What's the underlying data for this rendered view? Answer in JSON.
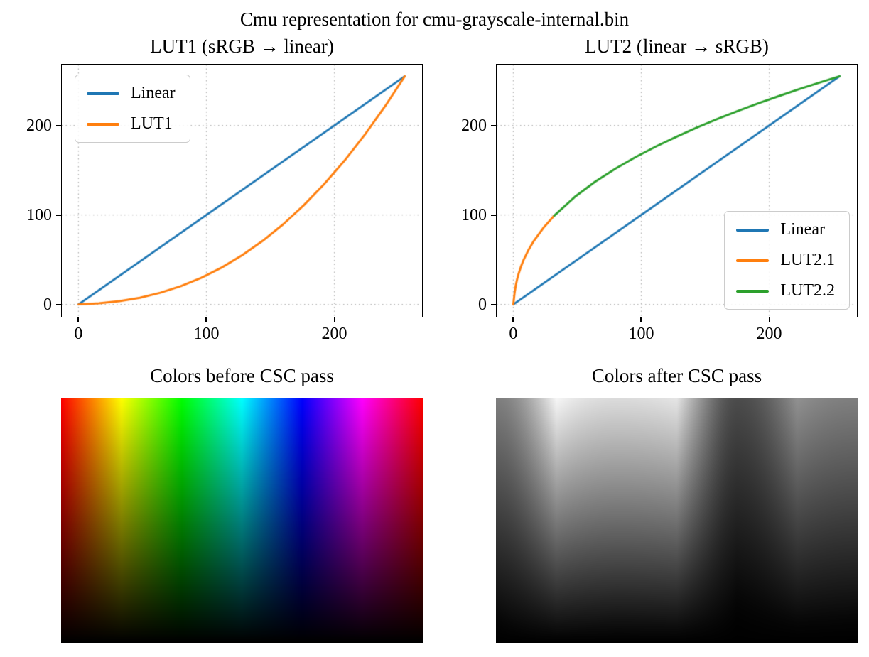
{
  "figure": {
    "suptitle": "Cmu representation for cmu-grayscale-internal.bin",
    "background_color": "#ffffff",
    "grid_color": "#b0b0b0",
    "spine_color": "#000000"
  },
  "chart_data": [
    {
      "type": "line",
      "title": "LUT1 (sRGB → linear)",
      "xlabel": "",
      "ylabel": "",
      "xlim": [
        -13,
        268
      ],
      "ylim": [
        -13,
        268
      ],
      "xticks": [
        0,
        100,
        200
      ],
      "yticks": [
        0,
        100,
        200
      ],
      "grid": true,
      "grid_style": "dotted",
      "legend_position": "upper-left",
      "series": [
        {
          "name": "Linear",
          "color": "#1f77b4",
          "x": [
            0,
            255
          ],
          "y": [
            0,
            255
          ]
        },
        {
          "name": "LUT1",
          "color": "#ff7f0e",
          "x": [
            0,
            16,
            32,
            48,
            64,
            80,
            96,
            112,
            128,
            144,
            160,
            176,
            192,
            208,
            224,
            240,
            255
          ],
          "y": [
            0,
            1.3,
            3.7,
            7.5,
            13.1,
            20.4,
            29.8,
            41.3,
            55.0,
            71.1,
            89.6,
            110.7,
            134.4,
            160.8,
            190.1,
            222.2,
            255
          ]
        }
      ]
    },
    {
      "type": "line",
      "title": "LUT2 (linear → sRGB)",
      "xlabel": "",
      "ylabel": "",
      "xlim": [
        -13,
        268
      ],
      "ylim": [
        -13,
        268
      ],
      "xticks": [
        0,
        100,
        200
      ],
      "yticks": [
        0,
        100,
        200
      ],
      "grid": true,
      "grid_style": "dotted",
      "legend_position": "lower-right",
      "series": [
        {
          "name": "Linear",
          "color": "#1f77b4",
          "x": [
            0,
            255
          ],
          "y": [
            0,
            255
          ]
        },
        {
          "name": "LUT2.1",
          "color": "#ff7f0e",
          "x": [
            0,
            1,
            2,
            3,
            4,
            6,
            8,
            12,
            16,
            24,
            32
          ],
          "y": [
            0,
            12.7,
            21.7,
            28.2,
            33.6,
            42.4,
            49.6,
            61.3,
            70.9,
            86.5,
            99.3
          ]
        },
        {
          "name": "LUT2.2",
          "color": "#2ca02c",
          "x": [
            32,
            48,
            64,
            80,
            96,
            112,
            128,
            144,
            160,
            176,
            192,
            208,
            224,
            240,
            255
          ],
          "y": [
            99.3,
            120.1,
            137.2,
            151.9,
            165.0,
            176.9,
            187.8,
            198.0,
            207.5,
            216.5,
            225.0,
            233.1,
            240.9,
            248.3,
            255
          ]
        }
      ]
    },
    {
      "type": "image",
      "title": "Colors before CSC pass",
      "description": "HSV gradient: hue sweeps 0→360 degrees left to right, value fades 1→0 top to bottom, saturation 1",
      "params": {
        "hue_range": [
          0,
          360
        ],
        "value_top": 1,
        "value_bottom": 0,
        "saturation": 1
      }
    },
    {
      "type": "image",
      "title": "Colors after CSC pass",
      "description": "Grayscale result of CSC pass: BT.709 luminance computed in linear light of the HSV gradient, re-encoded to sRGB",
      "params": {
        "coefficients": [
          0.2126,
          0.7152,
          0.0722
        ]
      }
    }
  ]
}
